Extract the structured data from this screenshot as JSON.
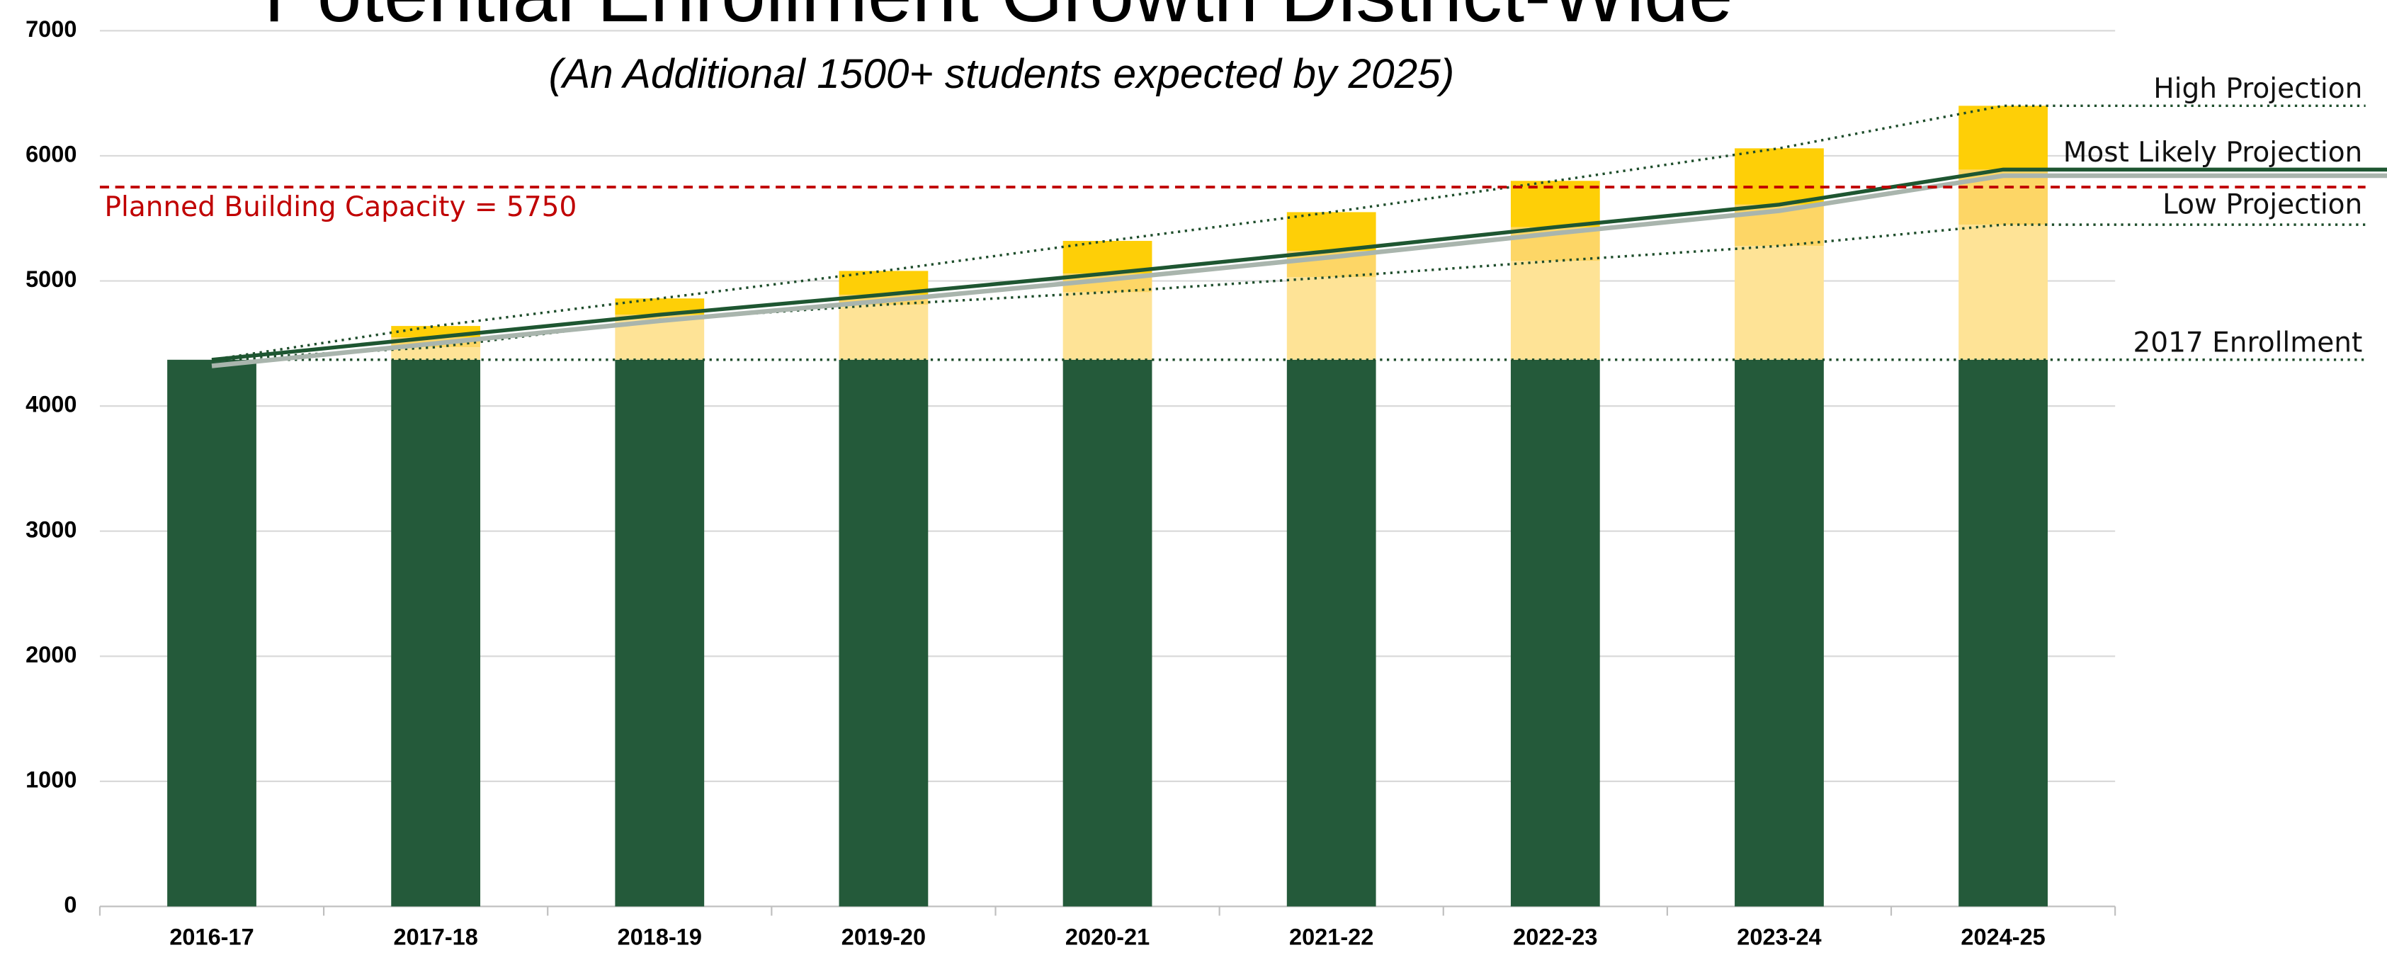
{
  "chart_data": {
    "type": "bar",
    "title": "Potential Enrollment Growth District-Wide",
    "subtitle": "(An Additional 1500+ students expected by 2025)",
    "categories": [
      "2016-17",
      "2017-18",
      "2018-19",
      "2019-20",
      "2020-21",
      "2021-22",
      "2022-23",
      "2023-24",
      "2024-25"
    ],
    "series": [
      {
        "name": "2017 Enrollment",
        "color": "#245a3a",
        "values": [
          4370,
          4370,
          4370,
          4370,
          4370,
          4370,
          4370,
          4370,
          4370
        ]
      },
      {
        "name": "Low Projection",
        "color": "#fee396",
        "values": [
          null,
          100,
          320,
          440,
          540,
          660,
          790,
          910,
          1080
        ]
      },
      {
        "name": "Most Likely Projection",
        "color": "#fdd666",
        "values": [
          null,
          80,
          40,
          80,
          150,
          210,
          270,
          330,
          440
        ]
      },
      {
        "name": "High Projection",
        "color": "#fecf07",
        "values": [
          null,
          90,
          130,
          190,
          260,
          310,
          370,
          450,
          510
        ]
      }
    ],
    "stacked": true,
    "reference_line": {
      "value": 5750,
      "label": "Planned Building Capacity = 5750",
      "color": "#c00000"
    },
    "ylim": [
      0,
      7000
    ],
    "yticks": [
      0,
      1000,
      2000,
      3000,
      4000,
      5000,
      6000,
      7000
    ],
    "grid": true
  }
}
